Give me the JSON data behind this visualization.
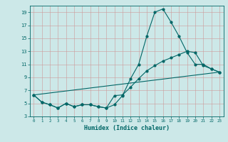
{
  "title": "",
  "xlabel": "Humidex (Indice chaleur)",
  "ylabel": "",
  "xlim": [
    -0.5,
    23.5
  ],
  "ylim": [
    3,
    20
  ],
  "yticks": [
    3,
    5,
    7,
    9,
    11,
    13,
    15,
    17,
    19
  ],
  "xticks": [
    0,
    1,
    2,
    3,
    4,
    5,
    6,
    7,
    8,
    9,
    10,
    11,
    12,
    13,
    14,
    15,
    16,
    17,
    18,
    19,
    20,
    21,
    22,
    23
  ],
  "bg_color": "#cce8e8",
  "grid_color": "#aacccc",
  "line_color": "#006666",
  "line1_x": [
    0,
    1,
    2,
    3,
    4,
    5,
    6,
    7,
    8,
    9,
    10,
    11,
    12,
    13,
    14,
    15,
    16,
    17,
    18,
    19,
    20,
    21,
    22,
    23
  ],
  "line1_y": [
    6.3,
    5.2,
    4.8,
    4.3,
    5.0,
    4.5,
    4.8,
    4.8,
    4.5,
    4.3,
    4.8,
    6.2,
    8.8,
    11.0,
    15.3,
    19.0,
    19.5,
    17.5,
    15.3,
    12.8,
    11.0,
    11.0,
    10.3,
    9.8
  ],
  "line2_x": [
    0,
    1,
    2,
    3,
    4,
    5,
    6,
    7,
    8,
    9,
    10,
    11,
    12,
    13,
    14,
    15,
    16,
    17,
    18,
    19,
    20,
    21,
    22,
    23
  ],
  "line2_y": [
    6.3,
    5.2,
    4.8,
    4.3,
    5.0,
    4.5,
    4.8,
    4.8,
    4.5,
    4.3,
    6.2,
    6.3,
    7.5,
    8.8,
    10.0,
    10.8,
    11.5,
    12.0,
    12.5,
    13.0,
    12.8,
    10.8,
    10.3,
    9.8
  ],
  "line3_x": [
    0,
    23
  ],
  "line3_y": [
    6.3,
    9.8
  ]
}
